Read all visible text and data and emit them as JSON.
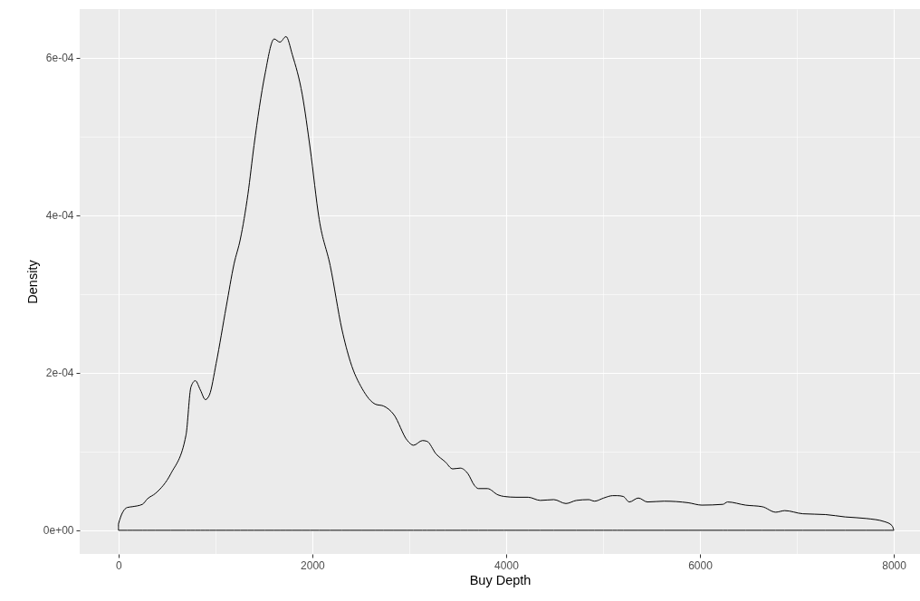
{
  "chart_data": {
    "type": "area",
    "xlabel": "Buy Depth",
    "ylabel": "Density",
    "grid": true,
    "xlim": [
      -400,
      8270
    ],
    "ylim": [
      -3e-05,
      0.000662
    ],
    "xticks": [
      0,
      2000,
      4000,
      6000,
      8000
    ],
    "yticks": [
      {
        "value": 0,
        "label": "0e+00"
      },
      {
        "value": 0.0002,
        "label": "2e-04"
      },
      {
        "value": 0.0004,
        "label": "4e-04"
      },
      {
        "value": 0.0006,
        "label": "6e-04"
      }
    ],
    "series": [
      {
        "color": "#000000",
        "x": [
          0,
          0,
          91,
          143,
          247,
          299,
          383,
          541,
          697,
          748,
          793,
          846,
          897,
          939,
          1008,
          1112,
          1192,
          1258,
          1336,
          1399,
          1510,
          1607,
          1666,
          1729,
          1794,
          1897,
          1978,
          2071,
          2185,
          2306,
          2393,
          2514,
          2654,
          2732,
          2841,
          2981,
          3044,
          3137,
          3184,
          3277,
          3371,
          3449,
          3526,
          3605,
          3673,
          3713,
          3807,
          3916,
          3978,
          4103,
          4227,
          4352,
          4492,
          4617,
          4726,
          4850,
          4913,
          5006,
          5100,
          5146,
          5208,
          5271,
          5364,
          5458,
          5629,
          5879,
          6019,
          6237,
          6284,
          6470,
          6642,
          6782,
          6875,
          7062,
          7296,
          7498,
          7717,
          7904,
          7981,
          8000
        ],
        "values": [
          0,
          8e-06,
          2.9e-05,
          3e-05,
          3.3e-05,
          4e-05,
          4.7e-05,
          7.2e-05,
          0.000121,
          0.000182,
          0.00019,
          0.000178,
          0.000166,
          0.000172,
          0.000212,
          0.000284,
          0.000338,
          0.00037,
          0.000427,
          0.000489,
          0.000578,
          0.000624,
          0.00062,
          0.000627,
          0.000604,
          0.000553,
          0.000485,
          0.000395,
          0.000336,
          0.000255,
          0.000214,
          0.00018,
          0.00016,
          0.000158,
          0.000147,
          0.000114,
          0.000108,
          0.000114,
          0.000113,
          9.7e-05,
          8.7e-05,
          7.8e-05,
          7.9e-05,
          7.2e-05,
          5.7e-05,
          5.3e-05,
          5.3e-05,
          4.5e-05,
          4.3e-05,
          4.2e-05,
          4.2e-05,
          3.8e-05,
          3.9e-05,
          3.4e-05,
          3.8e-05,
          3.9e-05,
          3.7e-05,
          4.1e-05,
          4.4e-05,
          4.4e-05,
          4.3e-05,
          3.6e-05,
          4.1e-05,
          3.6e-05,
          3.7e-05,
          3.5e-05,
          3.2e-05,
          3.3e-05,
          3.6e-05,
          3.2e-05,
          3e-05,
          2.3e-05,
          2.5e-05,
          2.1e-05,
          2e-05,
          1.7e-05,
          1.5e-05,
          1.1e-05,
          6e-06,
          0
        ]
      }
    ]
  }
}
